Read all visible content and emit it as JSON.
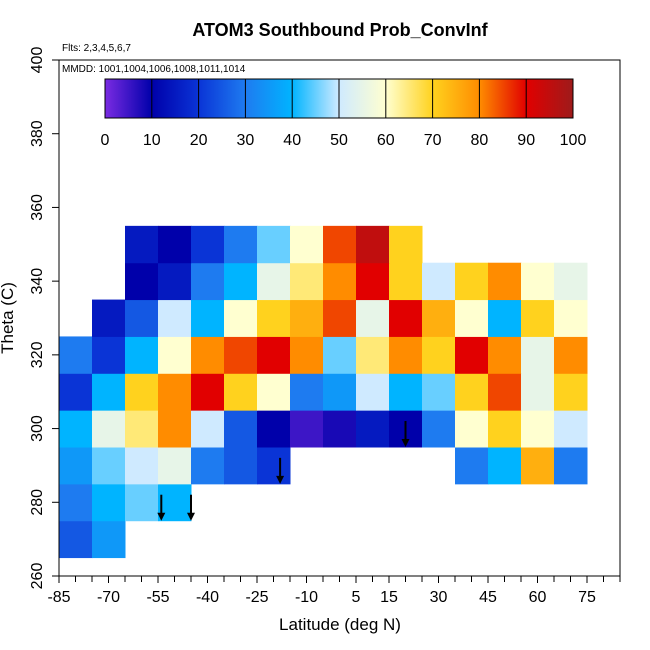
{
  "chart_data": {
    "type": "heatmap",
    "title": "ATOM3 Southbound Prob_ConvInf",
    "subtitle_flts": "Flts: 2,3,4,5,6,7",
    "subtitle_mmdd": "MMDD: 1001,1004,1006,1008,1011,1014",
    "xlabel": "Latitude (deg N)",
    "ylabel": "Theta (C)",
    "xlim": [
      -85,
      85
    ],
    "ylim": [
      260,
      400
    ],
    "x_ticks": [
      -85,
      -70,
      -55,
      -40,
      -25,
      -10,
      5,
      15,
      30,
      45,
      60,
      75
    ],
    "x_minor_step": 5,
    "y_ticks": [
      260,
      280,
      300,
      320,
      340,
      360,
      380,
      400
    ],
    "colorbar": {
      "range": [
        0,
        100
      ],
      "ticks": [
        0,
        10,
        20,
        30,
        40,
        50,
        60,
        70,
        80,
        90,
        100
      ],
      "colors": [
        "#7a2be2",
        "#0000aa",
        "#0a34d6",
        "#1e7bf0",
        "#00b4ff",
        "#cfeaff",
        "#ffffd0",
        "#ffd21e",
        "#ff8c00",
        "#e10000",
        "#9e1b1b"
      ]
    },
    "z_grid": {
      "x": [
        -80,
        -70,
        -60,
        -50,
        -40,
        -30,
        -20,
        -10,
        0,
        10,
        20,
        30,
        40,
        50,
        60,
        70
      ],
      "y": [
        270,
        280,
        290,
        300,
        310,
        320,
        330,
        340,
        350
      ],
      "z": [
        [
          25,
          35,
          null,
          null,
          null,
          null,
          null,
          null,
          null,
          null,
          null,
          null,
          null,
          null,
          null,
          null
        ],
        [
          30,
          40,
          45,
          40,
          null,
          null,
          null,
          null,
          null,
          null,
          null,
          null,
          null,
          null,
          null,
          null
        ],
        [
          35,
          45,
          50,
          55,
          30,
          25,
          20,
          null,
          null,
          null,
          null,
          null,
          30,
          40,
          75,
          30
        ],
        [
          40,
          55,
          65,
          80,
          50,
          25,
          10,
          5,
          8,
          15,
          10,
          30,
          60,
          70,
          60,
          50
        ],
        [
          20,
          40,
          70,
          80,
          90,
          70,
          60,
          30,
          35,
          50,
          40,
          45,
          70,
          85,
          55,
          70
        ],
        [
          30,
          20,
          40,
          60,
          80,
          85,
          90,
          80,
          45,
          65,
          80,
          70,
          90,
          80,
          55,
          80
        ],
        [
          null,
          15,
          25,
          50,
          40,
          60,
          70,
          75,
          85,
          55,
          90,
          75,
          60,
          40,
          70,
          60
        ],
        [
          null,
          null,
          10,
          15,
          30,
          40,
          55,
          65,
          80,
          90,
          70,
          50,
          70,
          80,
          60,
          55
        ],
        [
          null,
          null,
          15,
          10,
          20,
          30,
          45,
          60,
          85,
          95,
          70,
          null,
          null,
          null,
          null,
          null
        ]
      ]
    },
    "arrows_at_latitude": [
      -54,
      -45,
      -18,
      20
    ]
  }
}
